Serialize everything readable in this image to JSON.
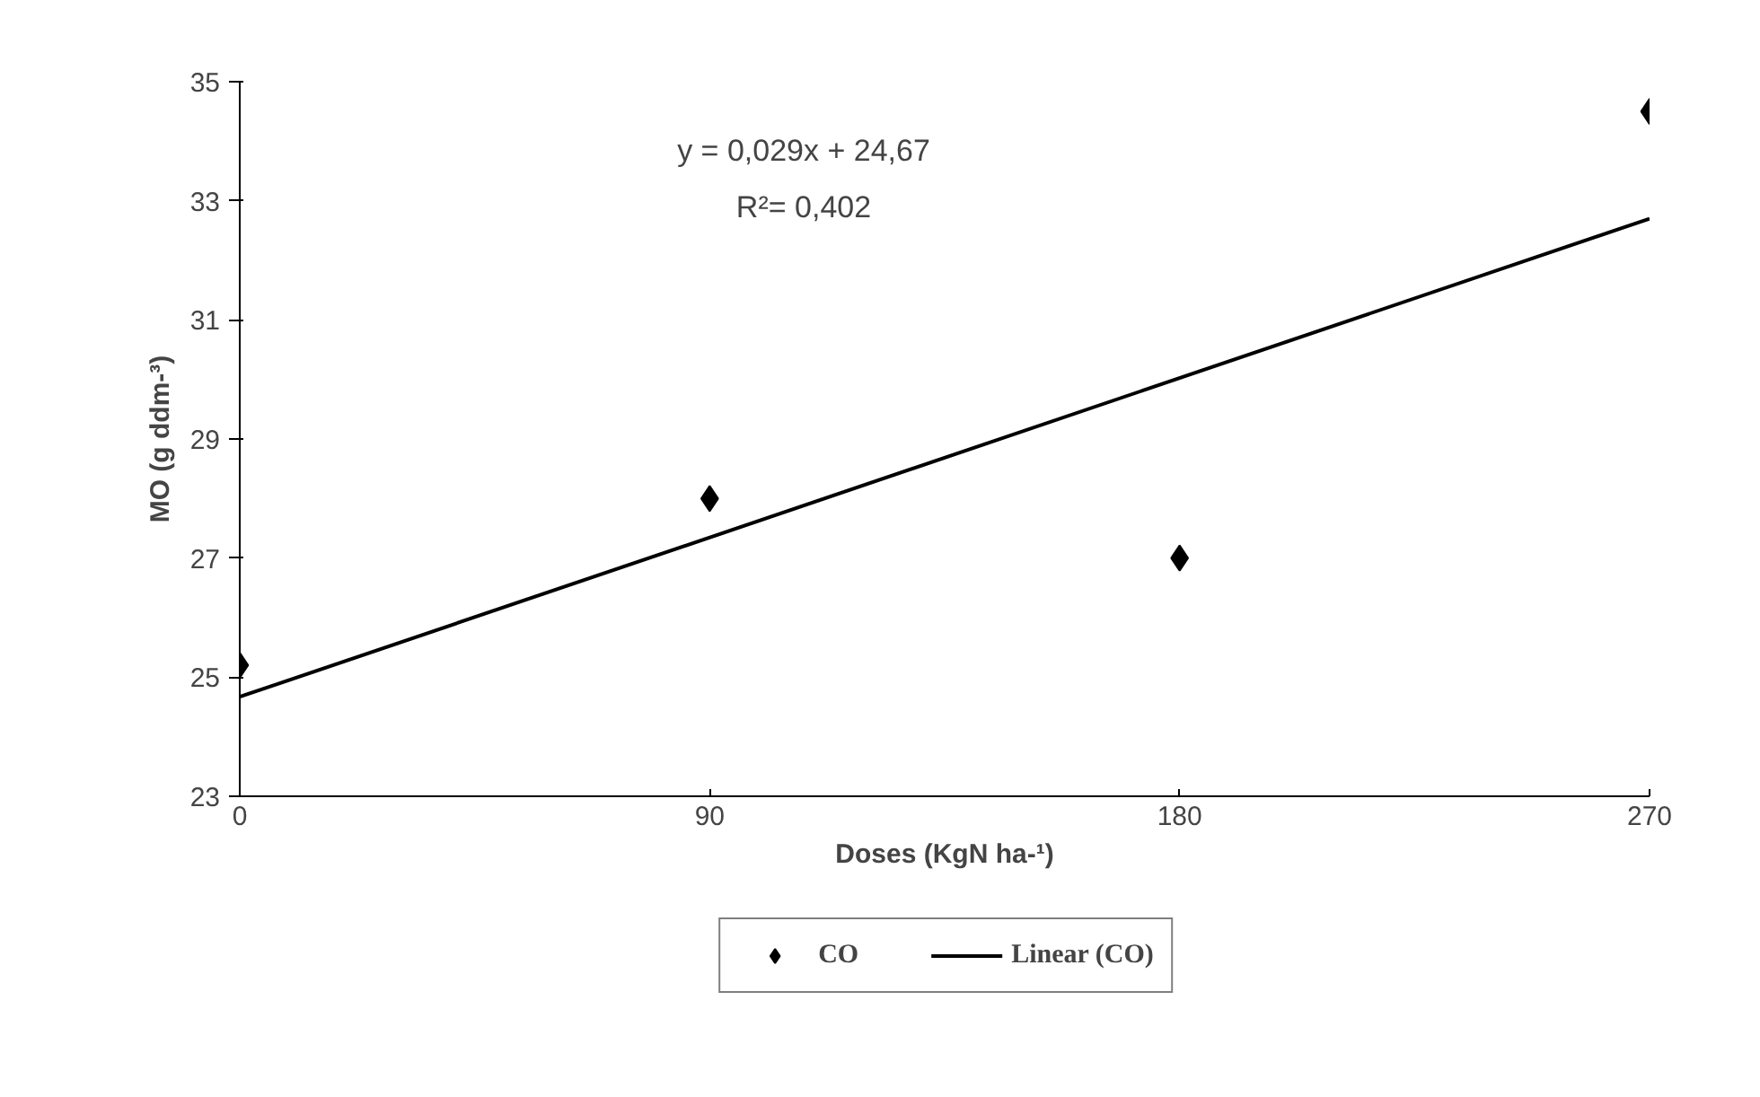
{
  "chart_data": {
    "type": "scatter",
    "xlabel": "Doses (KgN ha-¹)",
    "ylabel": "MO (g ddm-³)",
    "x": [
      0,
      90,
      180,
      270
    ],
    "series": [
      {
        "name": "CO",
        "type": "scatter",
        "color": "#000000",
        "marker": "diamond",
        "values": [
          25.2,
          28.0,
          27.0,
          34.5
        ]
      },
      {
        "name": "Linear (CO)",
        "type": "line",
        "color": "#000000",
        "marker": "none",
        "line_style": "solid",
        "x": [
          0,
          270
        ],
        "values": [
          24.67,
          32.7
        ]
      }
    ],
    "annotations": [
      "y = 0,029x + 24,67",
      "R²= 0,402"
    ],
    "xlim": [
      0,
      270
    ],
    "xticks": [
      0,
      90,
      180,
      270
    ],
    "ylim": [
      23,
      35
    ],
    "yticks": [
      23,
      25,
      27,
      29,
      31,
      33,
      35
    ],
    "grid": false,
    "legend": "bottom"
  }
}
